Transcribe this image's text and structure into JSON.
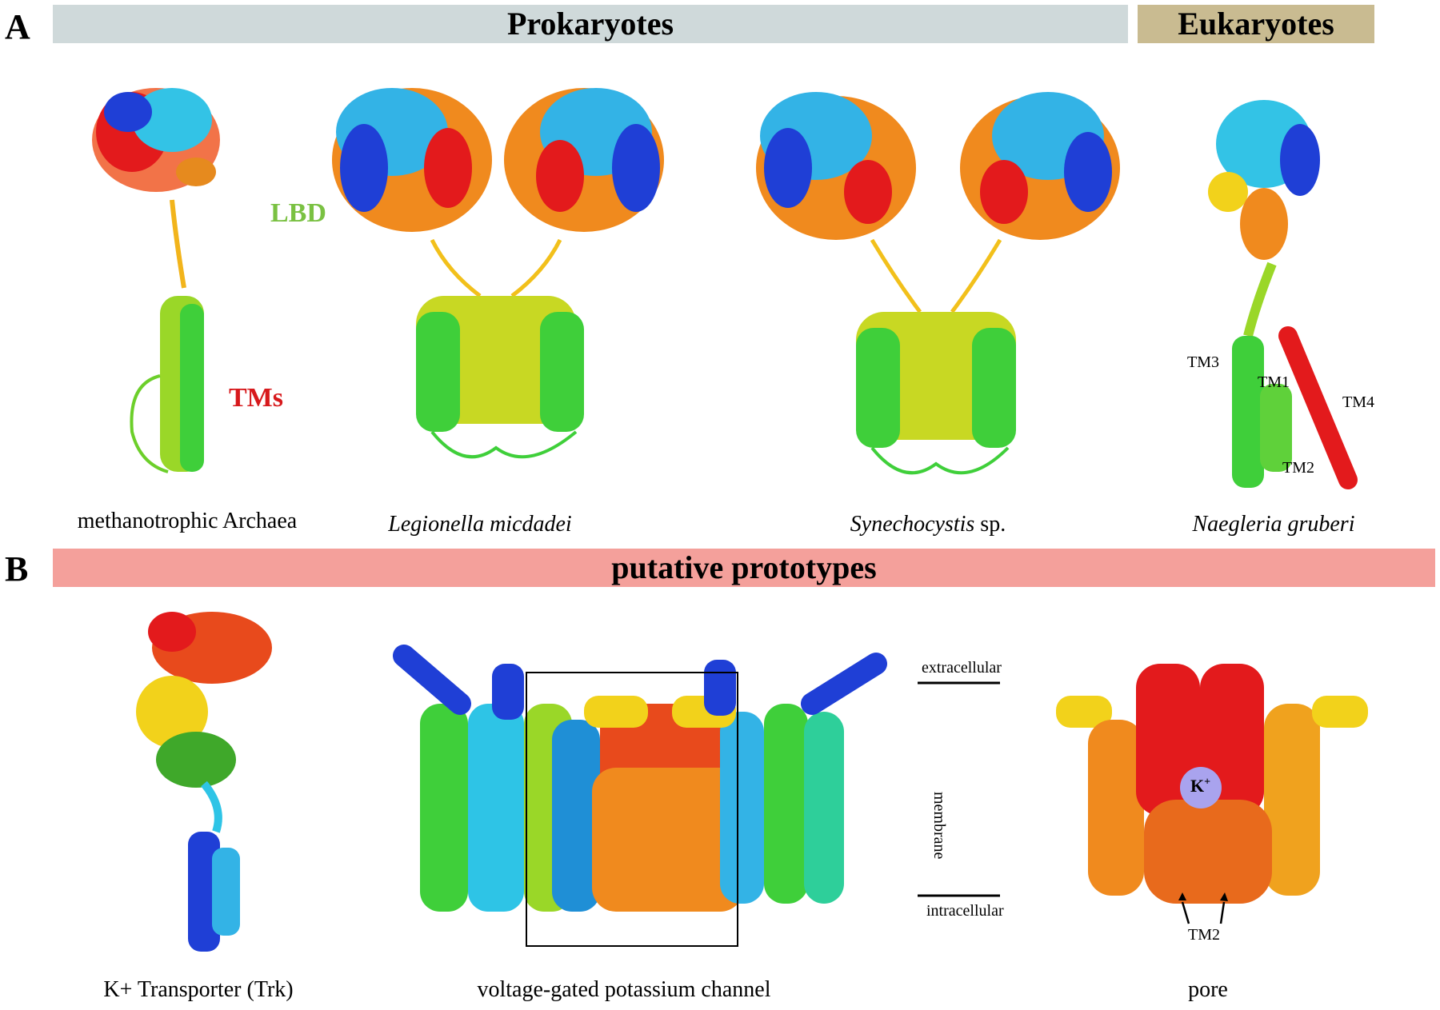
{
  "panels": {
    "a": {
      "letter": "A",
      "banner_prokaryotes": "Prokaryotes",
      "banner_eukaryotes": "Eukaryotes",
      "domain_labels": {
        "lbd": "LBD",
        "tms": "TMs"
      },
      "captions": {
        "archaea": "methanotrophic Archaea",
        "legionella": "Legionella micdadei",
        "synechocystis_italic": "Synechocystis",
        "synechocystis_suffix": " sp.",
        "naegleria": "Naegleria gruberi"
      },
      "tm_labels": {
        "tm1": "TM1",
        "tm2": "TM2",
        "tm3": "TM3",
        "tm4": "TM4"
      }
    },
    "b": {
      "letter": "B",
      "banner": "putative prototypes",
      "captions": {
        "trk": "K+ Transporter (Trk)",
        "kv": "voltage-gated potassium channel",
        "pore": "pore"
      },
      "membrane_labels": {
        "extracellular": "extracellular",
        "membrane": "membrane",
        "intracellular": "intracellular"
      },
      "ion": {
        "symbol": "K",
        "charge": "+"
      },
      "tm_label": "TM2"
    }
  },
  "colors": {
    "banner_prokaryotes": "#cfd9da",
    "banner_eukaryotes": "#c9bb91",
    "banner_prototypes": "#f4a09b",
    "lbd": "#7ac142",
    "tms": "#d7191c",
    "ion": "#a9a3ee"
  }
}
